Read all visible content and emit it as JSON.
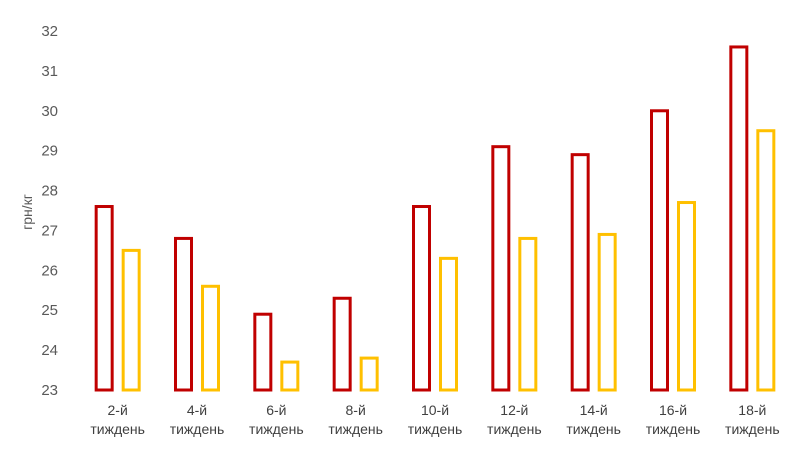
{
  "chart_data": {
    "type": "bar",
    "ylabel": "грн/кг",
    "xlabel": "",
    "ylim": [
      23,
      32
    ],
    "yticks": [
      23,
      24,
      25,
      26,
      27,
      28,
      29,
      30,
      31,
      32
    ],
    "grid": false,
    "categories": [
      [
        "2-й",
        "тиждень"
      ],
      [
        "4-й",
        "тиждень"
      ],
      [
        "6-й",
        "тиждень"
      ],
      [
        "8-й",
        "тиждень"
      ],
      [
        "10-й",
        "тиждень"
      ],
      [
        "12-й",
        "тиждень"
      ],
      [
        "14-й",
        "тиждень"
      ],
      [
        "16-й",
        "тиждень"
      ],
      [
        "18-й",
        "тиждень"
      ]
    ],
    "series": [
      {
        "values": [
          27.6,
          26.8,
          24.9,
          25.3,
          27.6,
          29.1,
          28.9,
          30.0,
          31.6
        ],
        "color": "#C00000"
      },
      {
        "values": [
          26.5,
          25.6,
          23.7,
          23.8,
          26.3,
          26.8,
          26.9,
          27.7,
          29.5
        ],
        "color": "#FFC000"
      }
    ],
    "style": "outlined-bars"
  }
}
